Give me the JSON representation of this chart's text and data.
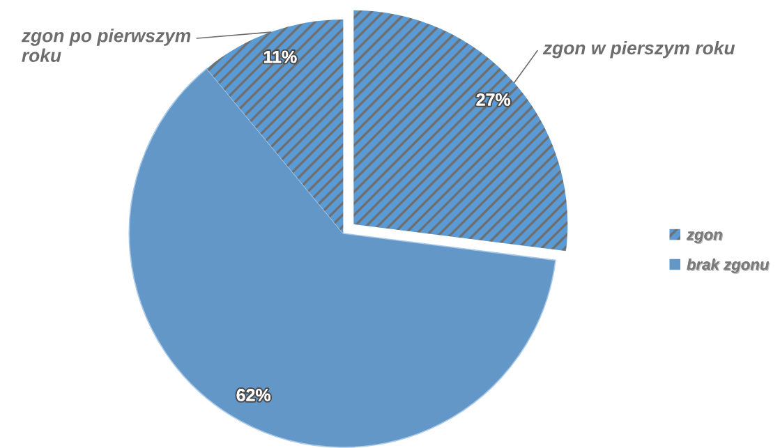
{
  "chart_data": {
    "type": "pie",
    "categories": [
      "zgon",
      "brak zgonu",
      null
    ],
    "values": [
      27,
      62,
      11
    ],
    "colors": [
      "#5b9bd5",
      "#6397c8",
      "#5b9bd5"
    ],
    "value_labels": [
      "27%",
      "62%",
      "11%"
    ],
    "annotations": [
      "zgon w pierszym roku",
      "zgon po pierwszym roku"
    ],
    "legend": "right"
  }
}
